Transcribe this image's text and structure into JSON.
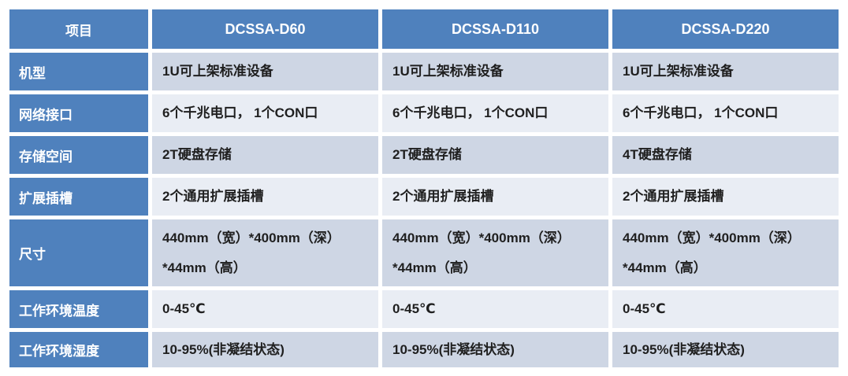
{
  "table": {
    "title": "DCSSA product specification table",
    "colors": {
      "header-bg": "#4F81BD",
      "label-bg": "#4F81BD",
      "band-dark": "#CED6E4",
      "band-light": "#E9EDF4",
      "header-text": "#FFFFFF",
      "body-text": "#1F1F1F",
      "page-bg": "#FFFFFF"
    },
    "columns": [
      "项目",
      "DCSSA-D60",
      "DCSSA-D110",
      "DCSSA-D220"
    ],
    "rows": [
      {
        "label": "机型",
        "values": [
          "1U可上架标准设备",
          "1U可上架标准设备",
          "1U可上架标准设备"
        ]
      },
      {
        "label": "网络接口",
        "values": [
          "6个千兆电口， 1个CON口",
          "6个千兆电口， 1个CON口",
          "6个千兆电口， 1个CON口"
        ]
      },
      {
        "label": "存储空间",
        "values": [
          "2T硬盘存储",
          "2T硬盘存储",
          "4T硬盘存储"
        ]
      },
      {
        "label": "扩展插槽",
        "values": [
          "2个通用扩展插槽",
          "2个通用扩展插槽",
          "2个通用扩展插槽"
        ]
      },
      {
        "label": "尺寸",
        "values": [
          "440mm（宽）*400mm（深）\n*44mm（高）",
          "440mm（宽）*400mm（深）\n*44mm（高）",
          "440mm（宽）*400mm（深）\n*44mm（高）"
        ]
      },
      {
        "label": "工作环境温度",
        "values": [
          "0-45℃",
          "0-45℃",
          "0-45℃"
        ]
      },
      {
        "label": "工作环境湿度",
        "values": [
          "10-95%(非凝结状态)",
          "10-95%(非凝结状态)",
          "10-95%(非凝结状态)"
        ]
      }
    ]
  }
}
